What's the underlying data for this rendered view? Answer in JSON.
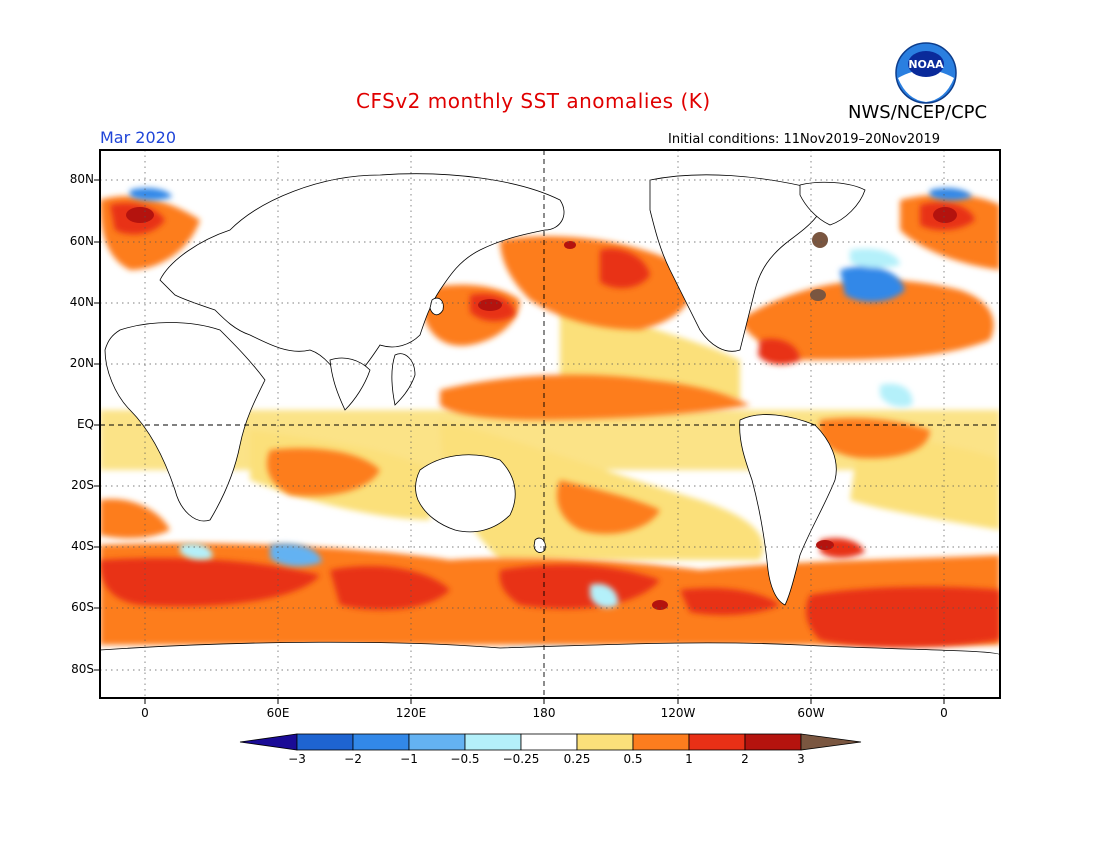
{
  "title": "CFSv2 monthly SST anomalies (K)",
  "month": "Mar 2020",
  "initial_conditions": "Initial conditions: 11Nov2019–20Nov2019",
  "agency": "NWS/NCEP/CPC",
  "logo": {
    "text": "NOAA",
    "icon": "noaa-logo"
  },
  "map": {
    "projection": "equirectangular",
    "lon_range": [
      -20,
      380
    ],
    "lat_range": [
      -90,
      90
    ],
    "center_lines": [
      "EQ",
      "180"
    ],
    "grid": true
  },
  "lat_ticks": [
    "80N",
    "60N",
    "40N",
    "20N",
    "EQ",
    "20S",
    "40S",
    "60S",
    "80S"
  ],
  "lon_ticks": [
    "0",
    "60E",
    "120E",
    "180",
    "120W",
    "60W",
    "0"
  ],
  "colorbar": {
    "labels": [
      "−3",
      "−2",
      "−1",
      "−0.5",
      "−0.25",
      "0.25",
      "0.5",
      "1",
      "2",
      "3"
    ],
    "colors": [
      "#1a0b96",
      "#1e64d1",
      "#3288e8",
      "#64b2f2",
      "#b4f0fa",
      "#ffffff",
      "#fbe07a",
      "#fd7d1e",
      "#e83016",
      "#b4130e",
      "#7a5640"
    ]
  },
  "colors": {
    "title": "#e00000",
    "month": "#1f45d8",
    "land": "#ffffff",
    "anomaly_warm": "#fd7d1e",
    "anomaly_hot": "#e83016",
    "anomaly_cool": "#64b2f2"
  }
}
